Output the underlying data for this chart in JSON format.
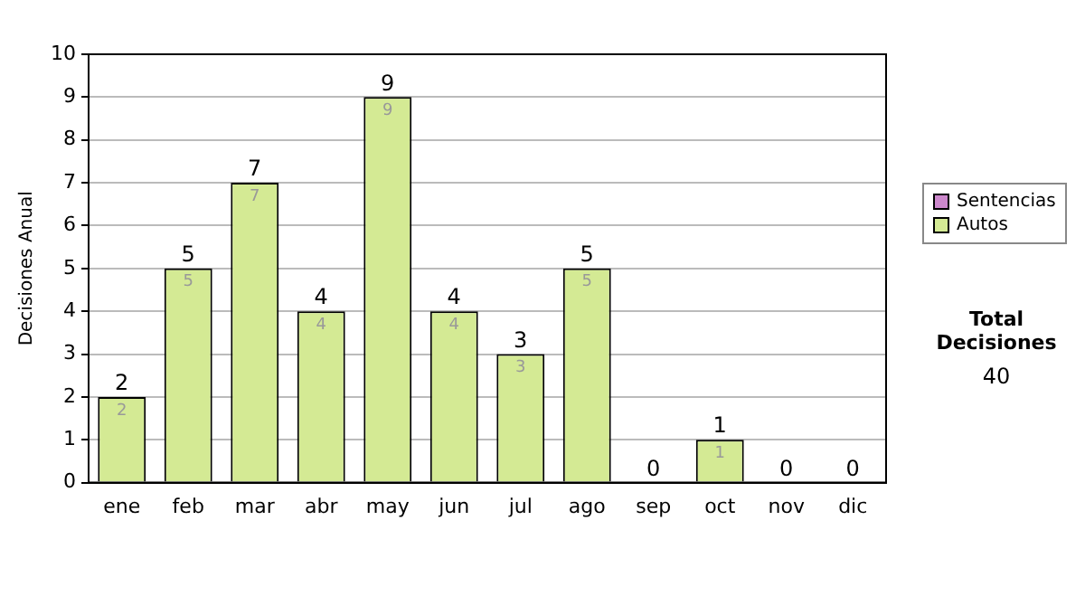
{
  "chart_data": {
    "type": "bar",
    "stacked": true,
    "ylabel": "Decisiones Anual",
    "categories": [
      "ene",
      "feb",
      "mar",
      "abr",
      "may",
      "jun",
      "jul",
      "ago",
      "sep",
      "oct",
      "nov",
      "dic"
    ],
    "series": [
      {
        "name": "Sentencias",
        "color": "#cc88cc",
        "values": [
          0,
          0,
          0,
          0,
          0,
          0,
          0,
          0,
          0,
          0,
          0,
          0
        ]
      },
      {
        "name": "Autos",
        "color": "#d4ea94",
        "values": [
          2,
          5,
          7,
          4,
          9,
          4,
          3,
          5,
          0,
          1,
          0,
          0
        ],
        "value_labels": [
          "2",
          "5",
          "7",
          "4",
          "9",
          "4",
          "3",
          "5",
          null,
          "1",
          null,
          null
        ]
      }
    ],
    "totals": [
      "2",
      "5",
      "7",
      "4",
      "9",
      "4",
      "3",
      "5",
      "0",
      "1",
      "0",
      "0"
    ],
    "ylim": [
      0,
      10
    ],
    "yticks": [
      0,
      1,
      2,
      3,
      4,
      5,
      6,
      7,
      8,
      9,
      10
    ],
    "grid": "y",
    "legend": "right",
    "annotations": [
      "Total Decisiones",
      "40"
    ]
  }
}
